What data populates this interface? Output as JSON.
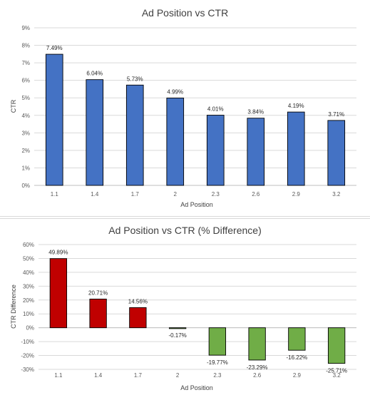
{
  "chart_data": [
    {
      "type": "bar",
      "title": "Ad Position vs CTR",
      "xlabel": "Ad Position",
      "ylabel": "CTR",
      "categories": [
        "1.1",
        "1.4",
        "1.7",
        "2",
        "2.3",
        "2.6",
        "2.9",
        "3.2"
      ],
      "values": [
        7.49,
        6.04,
        5.73,
        4.99,
        4.01,
        3.84,
        4.19,
        3.71
      ],
      "data_labels": [
        "7.49%",
        "6.04%",
        "5.73%",
        "4.99%",
        "4.01%",
        "3.84%",
        "4.19%",
        "3.71%"
      ],
      "ylim": [
        0,
        9
      ],
      "yticks": [
        0,
        1,
        2,
        3,
        4,
        5,
        6,
        7,
        8,
        9
      ],
      "ytick_labels": [
        "0%",
        "1%",
        "2%",
        "3%",
        "4%",
        "5%",
        "6%",
        "7%",
        "8%",
        "9%"
      ],
      "grid": true,
      "legend": "none",
      "colors": {
        "bar": "#4472c4",
        "grid": "#d9d9d9",
        "axis": "#bfbfbf"
      }
    },
    {
      "type": "bar",
      "title": "Ad Position vs CTR (% Difference)",
      "xlabel": "Ad Position",
      "ylabel": "CTR Difference",
      "categories": [
        "1.1",
        "1.4",
        "1.7",
        "2",
        "2.3",
        "2.6",
        "2.9",
        "3.2"
      ],
      "values": [
        49.89,
        20.71,
        14.56,
        -0.17,
        -19.77,
        -23.29,
        -16.22,
        -25.71
      ],
      "data_labels": [
        "49.89%",
        "20.71%",
        "14.56%",
        "-0.17%",
        "-19.77%",
        "-23.29%",
        "-16.22%",
        "-25.71%"
      ],
      "ylim": [
        -30,
        60
      ],
      "yticks": [
        -30,
        -20,
        -10,
        0,
        10,
        20,
        30,
        40,
        50,
        60
      ],
      "ytick_labels": [
        "-30%",
        "-20%",
        "-10%",
        "0%",
        "10%",
        "20%",
        "30%",
        "40%",
        "50%",
        "60%"
      ],
      "grid": true,
      "legend": "none",
      "colors": {
        "positive": "#c00000",
        "negative": "#70ad47",
        "grid": "#d9d9d9",
        "axis": "#bfbfbf"
      }
    }
  ]
}
